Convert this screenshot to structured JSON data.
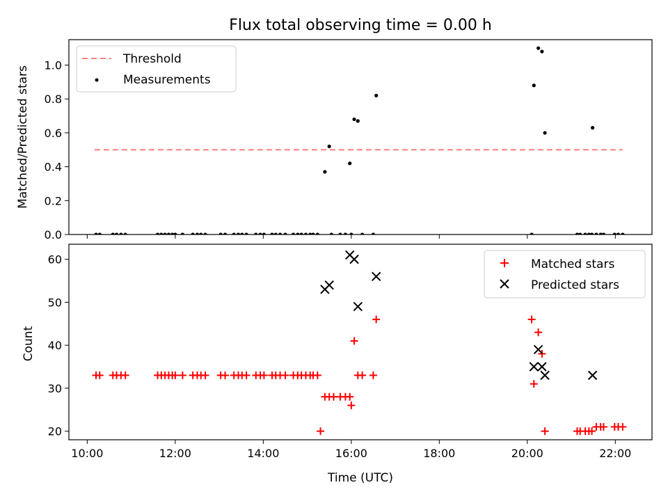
{
  "colors": {
    "threshold": "#ff7f7f",
    "measurement": "#000000",
    "matched": "#ff0000",
    "predicted": "#000000"
  },
  "chart_data": [
    {
      "type": "scatter",
      "title": "Flux total observing time = 0.00 h",
      "xlabel": "",
      "ylabel": "Matched/Predicted stars",
      "xlim": [
        "09:35",
        "22:50"
      ],
      "ylim": [
        0,
        1.15
      ],
      "x_ticks": [
        "10:00",
        "12:00",
        "14:00",
        "16:00",
        "18:00",
        "20:00",
        "22:00"
      ],
      "x_tick_labels_shown": false,
      "y_ticks": [
        0.0,
        0.2,
        0.4,
        0.6,
        0.8,
        1.0
      ],
      "y_tick_labels": [
        "0.0",
        "0.2",
        "0.4",
        "0.6",
        "0.8",
        "1.0"
      ],
      "grid": false,
      "legend_position": "upper-left",
      "legend": [
        "Threshold",
        "Measurements"
      ],
      "threshold": {
        "name": "Threshold",
        "y": 0.5,
        "x_range": [
          "10:10",
          "22:10"
        ],
        "style": "dashed"
      },
      "series": [
        {
          "name": "Measurements",
          "marker": "dot",
          "points": [
            [
              "10:12",
              0
            ],
            [
              "10:17",
              0
            ],
            [
              "10:35",
              0
            ],
            [
              "10:40",
              0
            ],
            [
              "10:46",
              0
            ],
            [
              "10:52",
              0
            ],
            [
              "11:36",
              0
            ],
            [
              "11:41",
              0
            ],
            [
              "11:46",
              0
            ],
            [
              "11:51",
              0
            ],
            [
              "11:56",
              0
            ],
            [
              "12:00",
              0
            ],
            [
              "12:10",
              0
            ],
            [
              "12:24",
              0
            ],
            [
              "12:30",
              0
            ],
            [
              "12:35",
              0
            ],
            [
              "12:41",
              0
            ],
            [
              "13:02",
              0
            ],
            [
              "13:08",
              0
            ],
            [
              "13:20",
              0
            ],
            [
              "13:26",
              0
            ],
            [
              "13:31",
              0
            ],
            [
              "13:37",
              0
            ],
            [
              "13:50",
              0
            ],
            [
              "13:56",
              0
            ],
            [
              "14:01",
              0
            ],
            [
              "14:12",
              0
            ],
            [
              "14:17",
              0
            ],
            [
              "14:23",
              0
            ],
            [
              "14:30",
              0
            ],
            [
              "14:41",
              0
            ],
            [
              "14:47",
              0
            ],
            [
              "14:52",
              0
            ],
            [
              "14:58",
              0
            ],
            [
              "15:04",
              0
            ],
            [
              "15:08",
              0
            ],
            [
              "15:14",
              0
            ],
            [
              "15:24",
              0.37
            ],
            [
              "15:30",
              0.52
            ],
            [
              "15:33",
              0
            ],
            [
              "15:45",
              0
            ],
            [
              "15:52",
              0
            ],
            [
              "15:58",
              0.42
            ],
            [
              "16:00",
              0
            ],
            [
              "16:04",
              0.68
            ],
            [
              "16:09",
              0.67
            ],
            [
              "16:15",
              0
            ],
            [
              "16:30",
              0
            ],
            [
              "16:34",
              0.82
            ],
            [
              "20:06",
              0
            ],
            [
              "20:09",
              0.88
            ],
            [
              "20:15",
              1.1
            ],
            [
              "20:20",
              1.08
            ],
            [
              "20:24",
              0.6
            ],
            [
              "21:08",
              0
            ],
            [
              "21:12",
              0
            ],
            [
              "21:19",
              0
            ],
            [
              "21:24",
              0
            ],
            [
              "21:28",
              0
            ],
            [
              "21:29",
              0.63
            ],
            [
              "21:34",
              0
            ],
            [
              "21:40",
              0
            ],
            [
              "21:44",
              0
            ],
            [
              "21:59",
              0
            ],
            [
              "22:04",
              0
            ],
            [
              "22:10",
              0
            ]
          ]
        }
      ]
    },
    {
      "type": "scatter",
      "title": "",
      "xlabel": "Time (UTC)",
      "ylabel": "Count",
      "xlim": [
        "09:35",
        "22:50"
      ],
      "ylim": [
        18,
        63.5
      ],
      "x_ticks": [
        "10:00",
        "12:00",
        "14:00",
        "16:00",
        "18:00",
        "20:00",
        "22:00"
      ],
      "x_tick_labels": [
        "10:00",
        "12:00",
        "14:00",
        "16:00",
        "18:00",
        "20:00",
        "22:00"
      ],
      "y_ticks": [
        20,
        30,
        40,
        50,
        60
      ],
      "y_tick_labels": [
        "20",
        "30",
        "40",
        "50",
        "60"
      ],
      "grid": false,
      "legend_position": "upper-right",
      "legend": [
        "Matched stars",
        "Predicted stars"
      ],
      "series": [
        {
          "name": "Matched stars",
          "marker": "plus",
          "points": [
            [
              "10:12",
              33
            ],
            [
              "10:17",
              33
            ],
            [
              "10:35",
              33
            ],
            [
              "10:40",
              33
            ],
            [
              "10:46",
              33
            ],
            [
              "10:52",
              33
            ],
            [
              "11:36",
              33
            ],
            [
              "11:41",
              33
            ],
            [
              "11:46",
              33
            ],
            [
              "11:51",
              33
            ],
            [
              "11:56",
              33
            ],
            [
              "12:00",
              33
            ],
            [
              "12:10",
              33
            ],
            [
              "12:24",
              33
            ],
            [
              "12:30",
              33
            ],
            [
              "12:35",
              33
            ],
            [
              "12:41",
              33
            ],
            [
              "13:02",
              33
            ],
            [
              "13:08",
              33
            ],
            [
              "13:20",
              33
            ],
            [
              "13:26",
              33
            ],
            [
              "13:31",
              33
            ],
            [
              "13:37",
              33
            ],
            [
              "13:50",
              33
            ],
            [
              "13:56",
              33
            ],
            [
              "14:01",
              33
            ],
            [
              "14:12",
              33
            ],
            [
              "14:17",
              33
            ],
            [
              "14:23",
              33
            ],
            [
              "14:30",
              33
            ],
            [
              "14:41",
              33
            ],
            [
              "14:47",
              33
            ],
            [
              "14:52",
              33
            ],
            [
              "14:58",
              33
            ],
            [
              "15:04",
              33
            ],
            [
              "15:08",
              33
            ],
            [
              "15:14",
              33
            ],
            [
              "15:18",
              20
            ],
            [
              "15:24",
              28
            ],
            [
              "15:30",
              28
            ],
            [
              "15:36",
              28
            ],
            [
              "15:45",
              28
            ],
            [
              "15:52",
              28
            ],
            [
              "15:58",
              28
            ],
            [
              "16:00",
              26
            ],
            [
              "16:04",
              41
            ],
            [
              "16:09",
              33
            ],
            [
              "16:15",
              33
            ],
            [
              "16:30",
              33
            ],
            [
              "16:34",
              46
            ],
            [
              "20:06",
              46
            ],
            [
              "20:09",
              31
            ],
            [
              "20:15",
              43
            ],
            [
              "20:20",
              38
            ],
            [
              "20:24",
              20
            ],
            [
              "21:08",
              20
            ],
            [
              "21:12",
              20
            ],
            [
              "21:19",
              20
            ],
            [
              "21:24",
              20
            ],
            [
              "21:28",
              20
            ],
            [
              "21:34",
              21
            ],
            [
              "21:40",
              21
            ],
            [
              "21:44",
              21
            ],
            [
              "21:59",
              21
            ],
            [
              "22:04",
              21
            ],
            [
              "22:10",
              21
            ]
          ]
        },
        {
          "name": "Predicted stars",
          "marker": "x",
          "points": [
            [
              "15:24",
              53
            ],
            [
              "15:30",
              54
            ],
            [
              "15:58",
              61
            ],
            [
              "16:04",
              60
            ],
            [
              "16:09",
              49
            ],
            [
              "16:34",
              56
            ],
            [
              "20:09",
              35
            ],
            [
              "20:15",
              39
            ],
            [
              "20:20",
              35
            ],
            [
              "20:24",
              33
            ],
            [
              "21:29",
              33
            ]
          ]
        }
      ]
    }
  ]
}
